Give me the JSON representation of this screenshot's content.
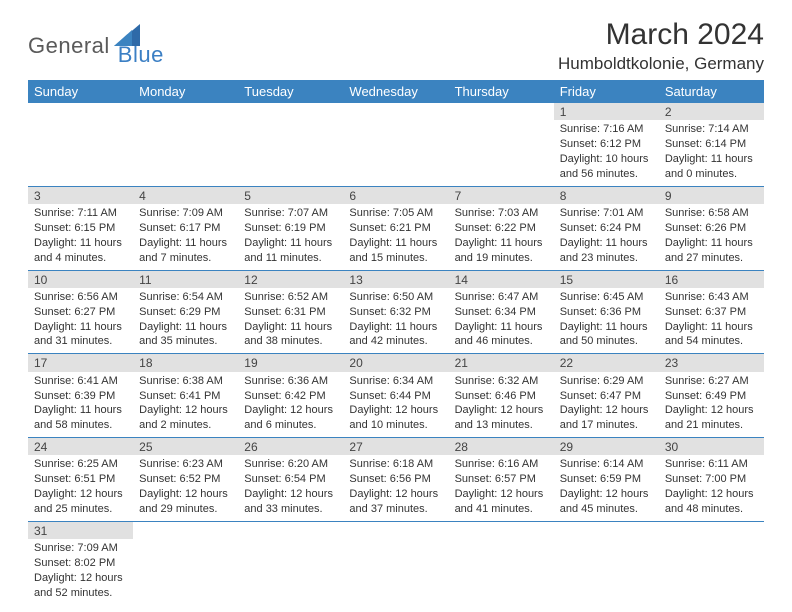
{
  "logo": {
    "part1": "General",
    "part2": "Blue"
  },
  "title": "March 2024",
  "location": "Humboldtkolonie, Germany",
  "colors": {
    "header_bg": "#3b83c0",
    "header_text": "#ffffff",
    "daynum_bg": "#e1e1e1",
    "row_divider": "#3b83c0",
    "logo_gray": "#5a5a5a",
    "logo_blue": "#3b7fc4",
    "body_text": "#333333",
    "page_bg": "#ffffff"
  },
  "weekdays": [
    "Sunday",
    "Monday",
    "Tuesday",
    "Wednesday",
    "Thursday",
    "Friday",
    "Saturday"
  ],
  "weeks": [
    [
      null,
      null,
      null,
      null,
      null,
      {
        "n": "1",
        "sr": "Sunrise: 7:16 AM",
        "ss": "Sunset: 6:12 PM",
        "dl": "Daylight: 10 hours and 56 minutes."
      },
      {
        "n": "2",
        "sr": "Sunrise: 7:14 AM",
        "ss": "Sunset: 6:14 PM",
        "dl": "Daylight: 11 hours and 0 minutes."
      }
    ],
    [
      {
        "n": "3",
        "sr": "Sunrise: 7:11 AM",
        "ss": "Sunset: 6:15 PM",
        "dl": "Daylight: 11 hours and 4 minutes."
      },
      {
        "n": "4",
        "sr": "Sunrise: 7:09 AM",
        "ss": "Sunset: 6:17 PM",
        "dl": "Daylight: 11 hours and 7 minutes."
      },
      {
        "n": "5",
        "sr": "Sunrise: 7:07 AM",
        "ss": "Sunset: 6:19 PM",
        "dl": "Daylight: 11 hours and 11 minutes."
      },
      {
        "n": "6",
        "sr": "Sunrise: 7:05 AM",
        "ss": "Sunset: 6:21 PM",
        "dl": "Daylight: 11 hours and 15 minutes."
      },
      {
        "n": "7",
        "sr": "Sunrise: 7:03 AM",
        "ss": "Sunset: 6:22 PM",
        "dl": "Daylight: 11 hours and 19 minutes."
      },
      {
        "n": "8",
        "sr": "Sunrise: 7:01 AM",
        "ss": "Sunset: 6:24 PM",
        "dl": "Daylight: 11 hours and 23 minutes."
      },
      {
        "n": "9",
        "sr": "Sunrise: 6:58 AM",
        "ss": "Sunset: 6:26 PM",
        "dl": "Daylight: 11 hours and 27 minutes."
      }
    ],
    [
      {
        "n": "10",
        "sr": "Sunrise: 6:56 AM",
        "ss": "Sunset: 6:27 PM",
        "dl": "Daylight: 11 hours and 31 minutes."
      },
      {
        "n": "11",
        "sr": "Sunrise: 6:54 AM",
        "ss": "Sunset: 6:29 PM",
        "dl": "Daylight: 11 hours and 35 minutes."
      },
      {
        "n": "12",
        "sr": "Sunrise: 6:52 AM",
        "ss": "Sunset: 6:31 PM",
        "dl": "Daylight: 11 hours and 38 minutes."
      },
      {
        "n": "13",
        "sr": "Sunrise: 6:50 AM",
        "ss": "Sunset: 6:32 PM",
        "dl": "Daylight: 11 hours and 42 minutes."
      },
      {
        "n": "14",
        "sr": "Sunrise: 6:47 AM",
        "ss": "Sunset: 6:34 PM",
        "dl": "Daylight: 11 hours and 46 minutes."
      },
      {
        "n": "15",
        "sr": "Sunrise: 6:45 AM",
        "ss": "Sunset: 6:36 PM",
        "dl": "Daylight: 11 hours and 50 minutes."
      },
      {
        "n": "16",
        "sr": "Sunrise: 6:43 AM",
        "ss": "Sunset: 6:37 PM",
        "dl": "Daylight: 11 hours and 54 minutes."
      }
    ],
    [
      {
        "n": "17",
        "sr": "Sunrise: 6:41 AM",
        "ss": "Sunset: 6:39 PM",
        "dl": "Daylight: 11 hours and 58 minutes."
      },
      {
        "n": "18",
        "sr": "Sunrise: 6:38 AM",
        "ss": "Sunset: 6:41 PM",
        "dl": "Daylight: 12 hours and 2 minutes."
      },
      {
        "n": "19",
        "sr": "Sunrise: 6:36 AM",
        "ss": "Sunset: 6:42 PM",
        "dl": "Daylight: 12 hours and 6 minutes."
      },
      {
        "n": "20",
        "sr": "Sunrise: 6:34 AM",
        "ss": "Sunset: 6:44 PM",
        "dl": "Daylight: 12 hours and 10 minutes."
      },
      {
        "n": "21",
        "sr": "Sunrise: 6:32 AM",
        "ss": "Sunset: 6:46 PM",
        "dl": "Daylight: 12 hours and 13 minutes."
      },
      {
        "n": "22",
        "sr": "Sunrise: 6:29 AM",
        "ss": "Sunset: 6:47 PM",
        "dl": "Daylight: 12 hours and 17 minutes."
      },
      {
        "n": "23",
        "sr": "Sunrise: 6:27 AM",
        "ss": "Sunset: 6:49 PM",
        "dl": "Daylight: 12 hours and 21 minutes."
      }
    ],
    [
      {
        "n": "24",
        "sr": "Sunrise: 6:25 AM",
        "ss": "Sunset: 6:51 PM",
        "dl": "Daylight: 12 hours and 25 minutes."
      },
      {
        "n": "25",
        "sr": "Sunrise: 6:23 AM",
        "ss": "Sunset: 6:52 PM",
        "dl": "Daylight: 12 hours and 29 minutes."
      },
      {
        "n": "26",
        "sr": "Sunrise: 6:20 AM",
        "ss": "Sunset: 6:54 PM",
        "dl": "Daylight: 12 hours and 33 minutes."
      },
      {
        "n": "27",
        "sr": "Sunrise: 6:18 AM",
        "ss": "Sunset: 6:56 PM",
        "dl": "Daylight: 12 hours and 37 minutes."
      },
      {
        "n": "28",
        "sr": "Sunrise: 6:16 AM",
        "ss": "Sunset: 6:57 PM",
        "dl": "Daylight: 12 hours and 41 minutes."
      },
      {
        "n": "29",
        "sr": "Sunrise: 6:14 AM",
        "ss": "Sunset: 6:59 PM",
        "dl": "Daylight: 12 hours and 45 minutes."
      },
      {
        "n": "30",
        "sr": "Sunrise: 6:11 AM",
        "ss": "Sunset: 7:00 PM",
        "dl": "Daylight: 12 hours and 48 minutes."
      }
    ],
    [
      {
        "n": "31",
        "sr": "Sunrise: 7:09 AM",
        "ss": "Sunset: 8:02 PM",
        "dl": "Daylight: 12 hours and 52 minutes."
      },
      null,
      null,
      null,
      null,
      null,
      null
    ]
  ]
}
